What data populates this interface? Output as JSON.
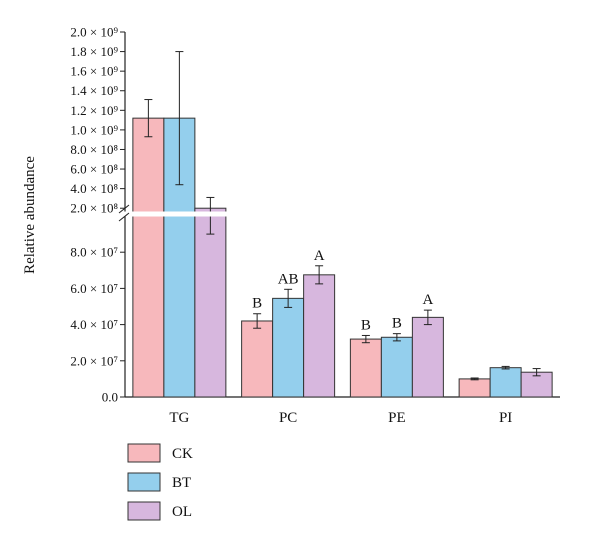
{
  "chart_data": {
    "type": "bar",
    "ylabel": "Relative abundance",
    "categories": [
      "TG",
      "PC",
      "PE",
      "PI"
    ],
    "series": [
      {
        "name": "CK",
        "color": "#f7b8bc",
        "values": [
          1120000000.0,
          42000000.0,
          32000000.0,
          10000000.0
        ],
        "errors": [
          190000000.0,
          4000000.0,
          2000000.0,
          500000.0
        ],
        "labels": [
          "",
          "B",
          "B",
          ""
        ]
      },
      {
        "name": "BT",
        "color": "#94cfed",
        "values": [
          1120000000.0,
          54500000.0,
          33000000.0,
          16200000.0
        ],
        "errors": [
          680000000.0,
          5000000.0,
          2000000.0,
          700000.0
        ],
        "labels": [
          "",
          "AB",
          "B",
          ""
        ]
      },
      {
        "name": "OL",
        "color": "#d7b7de",
        "values": [
          200000000.0,
          67500000.0,
          44000000.0,
          13700000.0
        ],
        "errors": [
          110000000.0,
          5000000.0,
          4000000.0,
          2000000.0
        ],
        "labels": [
          "",
          "A",
          "A",
          ""
        ]
      }
    ],
    "axis_break": true,
    "lower_axis": {
      "ylim": [
        0,
        100000000.0
      ],
      "ticks": [
        {
          "value": 0,
          "label": "0.0"
        },
        {
          "value": 20000000.0,
          "label": "2.0 × 10⁷"
        },
        {
          "value": 40000000.0,
          "label": "4.0 × 10⁷"
        },
        {
          "value": 60000000.0,
          "label": "6.0 × 10⁷"
        },
        {
          "value": 80000000.0,
          "label": "8.0 × 10⁷"
        }
      ]
    },
    "upper_axis": {
      "ylim": [
        100000000.0,
        2000000000.0
      ],
      "ticks": [
        {
          "value": 200000000.0,
          "label": "2.0 × 10⁸"
        },
        {
          "value": 400000000.0,
          "label": "4.0 × 10⁸"
        },
        {
          "value": 600000000.0,
          "label": "6.0 × 10⁸"
        },
        {
          "value": 800000000.0,
          "label": "8.0 × 10⁸"
        },
        {
          "value": 1000000000.0,
          "label": "1.0 × 10⁹"
        },
        {
          "value": 1200000000.0,
          "label": "1.2 × 10⁹"
        },
        {
          "value": 1400000000.0,
          "label": "1.4 × 10⁹"
        },
        {
          "value": 1600000000.0,
          "label": "1.6 × 10⁹"
        },
        {
          "value": 1800000000.0,
          "label": "1.8 × 10⁹"
        },
        {
          "value": 2000000000.0,
          "label": "2.0 × 10⁹"
        }
      ]
    },
    "legend_position": "bottom-left"
  }
}
